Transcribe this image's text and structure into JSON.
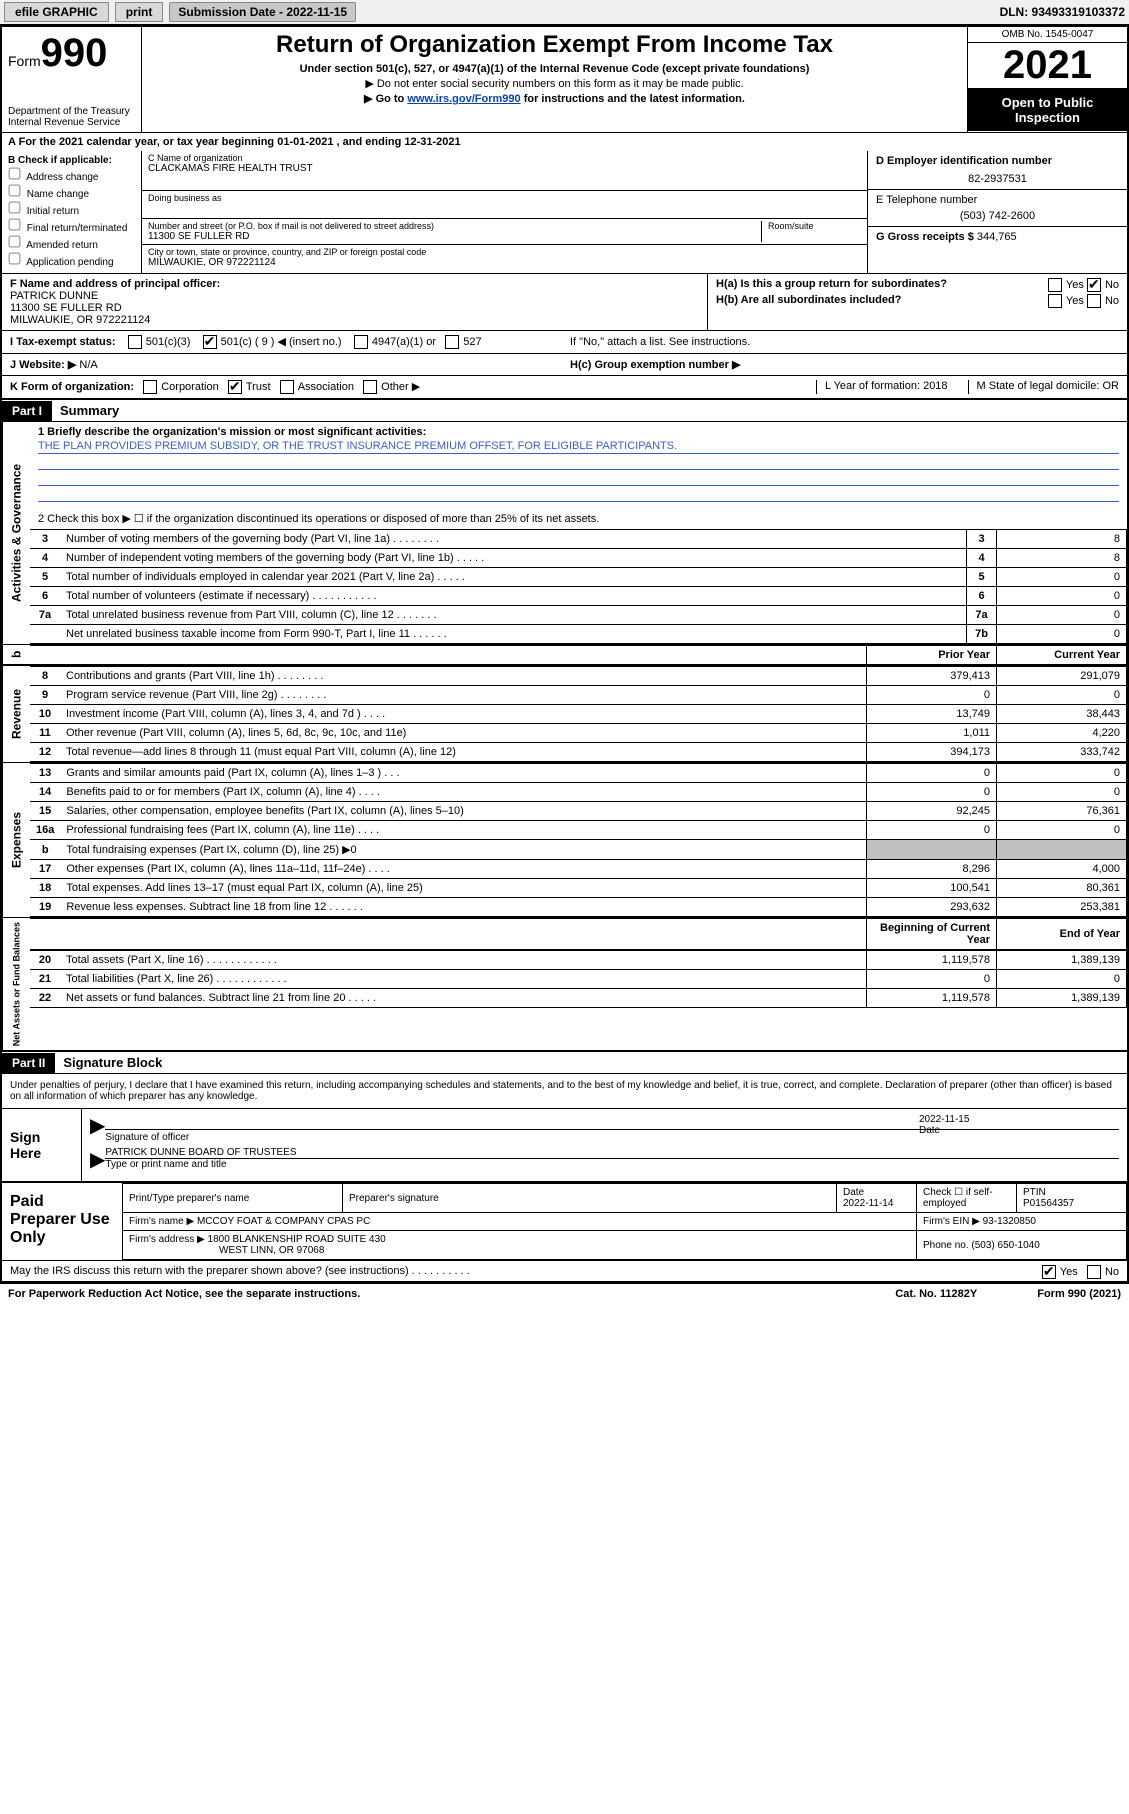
{
  "topbar": {
    "efile": "efile GRAPHIC",
    "print": "print",
    "submission": "Submission Date - 2022-11-15",
    "dln": "DLN: 93493319103372"
  },
  "header": {
    "form_label": "Form",
    "form_num": "990",
    "dept": "Department of the Treasury",
    "irs": "Internal Revenue Service",
    "title": "Return of Organization Exempt From Income Tax",
    "subtitle": "Under section 501(c), 527, or 4947(a)(1) of the Internal Revenue Code (except private foundations)",
    "note1": "▶ Do not enter social security numbers on this form as it may be made public.",
    "note2_pre": "▶ Go to ",
    "note2_link": "www.irs.gov/Form990",
    "note2_post": " for instructions and the latest information.",
    "omb": "OMB No. 1545-0047",
    "year": "2021",
    "open": "Open to Public Inspection"
  },
  "period": {
    "label_a": "A",
    "text": "For the 2021 calendar year, or tax year beginning 01-01-2021    , and ending 12-31-2021"
  },
  "boxB": {
    "label": "B Check if applicable:",
    "items": [
      "Address change",
      "Name change",
      "Initial return",
      "Final return/terminated",
      "Amended return",
      "Application pending"
    ]
  },
  "boxC": {
    "name_label": "C Name of organization",
    "name": "CLACKAMAS FIRE HEALTH TRUST",
    "dba_label": "Doing business as",
    "addr_label": "Number and street (or P.O. box if mail is not delivered to street address)",
    "room_label": "Room/suite",
    "addr": "11300 SE FULLER RD",
    "city_label": "City or town, state or province, country, and ZIP or foreign postal code",
    "city": "MILWAUKIE, OR  972221124"
  },
  "boxD": {
    "ein_label": "D Employer identification number",
    "ein": "82-2937531",
    "phone_label": "E Telephone number",
    "phone": "(503) 742-2600",
    "gross_label": "G Gross receipts $",
    "gross": "344,765"
  },
  "boxF": {
    "label": "F  Name and address of principal officer:",
    "name": "PATRICK DUNNE",
    "addr1": "11300 SE FULLER RD",
    "addr2": "MILWAUKIE, OR  972221124"
  },
  "boxH": {
    "ha": "H(a)  Is this a group return for subordinates?",
    "ha_yes": "Yes",
    "ha_no": "No",
    "hb": "H(b)  Are all subordinates included?",
    "hb_yes": "Yes",
    "hb_no": "No",
    "hb_note": "If \"No,\" attach a list. See instructions.",
    "hc": "H(c)  Group exemption number ▶"
  },
  "rowI": {
    "label": "I    Tax-exempt status:",
    "opt1": "501(c)(3)",
    "opt2": "501(c) ( 9 ) ◀ (insert no.)",
    "opt3": "4947(a)(1) or",
    "opt4": "527"
  },
  "rowJ": {
    "label": "J   Website: ▶",
    "value": "N/A"
  },
  "rowK": {
    "label": "K Form of organization:",
    "opts": [
      "Corporation",
      "Trust",
      "Association",
      "Other ▶"
    ],
    "year_label": "L Year of formation: 2018",
    "domicile_label": "M State of legal domicile: OR"
  },
  "partI": {
    "header": "Part I",
    "title": "Summary"
  },
  "mission": {
    "q1": "1   Briefly describe the organization's mission or most significant activities:",
    "text": "THE PLAN PROVIDES PREMIUM SUBSIDY, OR THE TRUST INSURANCE PREMIUM OFFSET, FOR ELIGIBLE PARTICIPANTS."
  },
  "gov": {
    "side": "Activities & Governance",
    "q2": "2    Check this box ▶ ☐  if the organization discontinued its operations or disposed of more than 25% of its net assets.",
    "rows": [
      {
        "n": "3",
        "label": "Number of voting members of the governing body (Part VI, line 1a)   .    .    .    .    .    .    .    .",
        "box": "3",
        "val": "8"
      },
      {
        "n": "4",
        "label": "Number of independent voting members of the governing body (Part VI, line 1b)   .    .    .    .    .",
        "box": "4",
        "val": "8"
      },
      {
        "n": "5",
        "label": "Total number of individuals employed in calendar year 2021 (Part V, line 2a)   .    .    .    .    .",
        "box": "5",
        "val": "0"
      },
      {
        "n": "6",
        "label": "Total number of volunteers (estimate if necessary)   .    .    .    .    .    .    .    .    .    .    .",
        "box": "6",
        "val": "0"
      },
      {
        "n": "7a",
        "label": "Total unrelated business revenue from Part VIII, column (C), line 12   .    .    .    .    .    .    .",
        "box": "7a",
        "val": "0"
      },
      {
        "n": "",
        "label": "Net unrelated business taxable income from Form 990-T, Part I, line 11   .    .    .    .    .    .",
        "box": "7b",
        "val": "0"
      }
    ]
  },
  "twocol_header": {
    "prior": "Prior Year",
    "current": "Current Year",
    "boy": "Beginning of Current Year",
    "eoy": "End of Year"
  },
  "revenue": {
    "side": "Revenue",
    "rows": [
      {
        "n": "8",
        "label": "Contributions and grants (Part VIII, line 1h)   .    .    .    .    .    .    .    .",
        "prior": "379,413",
        "curr": "291,079"
      },
      {
        "n": "9",
        "label": "Program service revenue (Part VIII, line 2g)   .    .    .    .    .    .    .    .",
        "prior": "0",
        "curr": "0"
      },
      {
        "n": "10",
        "label": "Investment income (Part VIII, column (A), lines 3, 4, and 7d )   .    .    .    .",
        "prior": "13,749",
        "curr": "38,443"
      },
      {
        "n": "11",
        "label": "Other revenue (Part VIII, column (A), lines 5, 6d, 8c, 9c, 10c, and 11e)",
        "prior": "1,011",
        "curr": "4,220"
      },
      {
        "n": "12",
        "label": "Total revenue—add lines 8 through 11 (must equal Part VIII, column (A), line 12)",
        "prior": "394,173",
        "curr": "333,742"
      }
    ]
  },
  "expenses": {
    "side": "Expenses",
    "rows": [
      {
        "n": "13",
        "label": "Grants and similar amounts paid (Part IX, column (A), lines 1–3 )   .    .    .",
        "prior": "0",
        "curr": "0"
      },
      {
        "n": "14",
        "label": "Benefits paid to or for members (Part IX, column (A), line 4)   .    .    .    .",
        "prior": "0",
        "curr": "0"
      },
      {
        "n": "15",
        "label": "Salaries, other compensation, employee benefits (Part IX, column (A), lines 5–10)",
        "prior": "92,245",
        "curr": "76,361"
      },
      {
        "n": "16a",
        "label": "Professional fundraising fees (Part IX, column (A), line 11e)   .    .    .    .",
        "prior": "0",
        "curr": "0"
      },
      {
        "n": "b",
        "label": "Total fundraising expenses (Part IX, column (D), line 25) ▶0",
        "prior": "grey",
        "curr": "grey"
      },
      {
        "n": "17",
        "label": "Other expenses (Part IX, column (A), lines 11a–11d, 11f–24e)   .    .    .    .",
        "prior": "8,296",
        "curr": "4,000"
      },
      {
        "n": "18",
        "label": "Total expenses. Add lines 13–17 (must equal Part IX, column (A), line 25)",
        "prior": "100,541",
        "curr": "80,361"
      },
      {
        "n": "19",
        "label": "Revenue less expenses. Subtract line 18 from line 12   .    .    .    .    .    .",
        "prior": "293,632",
        "curr": "253,381"
      }
    ]
  },
  "netassets": {
    "side": "Net Assets or Fund Balances",
    "rows": [
      {
        "n": "20",
        "label": "Total assets (Part X, line 16)   .    .    .    .    .    .    .    .    .    .    .    .",
        "prior": "1,119,578",
        "curr": "1,389,139"
      },
      {
        "n": "21",
        "label": "Total liabilities (Part X, line 26)   .    .    .    .    .    .    .    .    .    .    .    .",
        "prior": "0",
        "curr": "0"
      },
      {
        "n": "22",
        "label": "Net assets or fund balances. Subtract line 21 from line 20   .    .    .    .    .",
        "prior": "1,119,578",
        "curr": "1,389,139"
      }
    ]
  },
  "partII": {
    "header": "Part II",
    "title": "Signature Block"
  },
  "penalties": "Under penalties of perjury, I declare that I have examined this return, including accompanying schedules and statements, and to the best of my knowledge and belief, it is true, correct, and complete. Declaration of preparer (other than officer) is based on all information of which preparer has any knowledge.",
  "sign": {
    "label": "Sign Here",
    "sig_officer": "Signature of officer",
    "date": "2022-11-15",
    "date_label": "Date",
    "name": "PATRICK DUNNE  BOARD OF TRUSTEES",
    "name_label": "Type or print name and title"
  },
  "preparer": {
    "label": "Paid Preparer Use Only",
    "h_name": "Print/Type preparer's name",
    "h_sig": "Preparer's signature",
    "h_date": "Date",
    "date": "2022-11-14",
    "h_check": "Check ☐ if self-employed",
    "h_ptin": "PTIN",
    "ptin": "P01564357",
    "firm_name_label": "Firm's name      ▶",
    "firm_name": "MCCOY FOAT & COMPANY CPAS PC",
    "firm_ein_label": "Firm's EIN ▶",
    "firm_ein": "93-1320850",
    "firm_addr_label": "Firm's address ▶",
    "firm_addr1": "1800 BLANKENSHIP ROAD SUITE 430",
    "firm_addr2": "WEST LINN, OR  97068",
    "phone_label": "Phone no.",
    "phone": "(503) 650-1040"
  },
  "discuss": {
    "q": "May the IRS discuss this return with the preparer shown above? (see instructions)   .    .    .    .    .    .    .    .    .    .",
    "yes": "Yes",
    "no": "No"
  },
  "footer": {
    "left": "For Paperwork Reduction Act Notice, see the separate instructions.",
    "mid": "Cat. No. 11282Y",
    "right": "Form 990 (2021)"
  }
}
